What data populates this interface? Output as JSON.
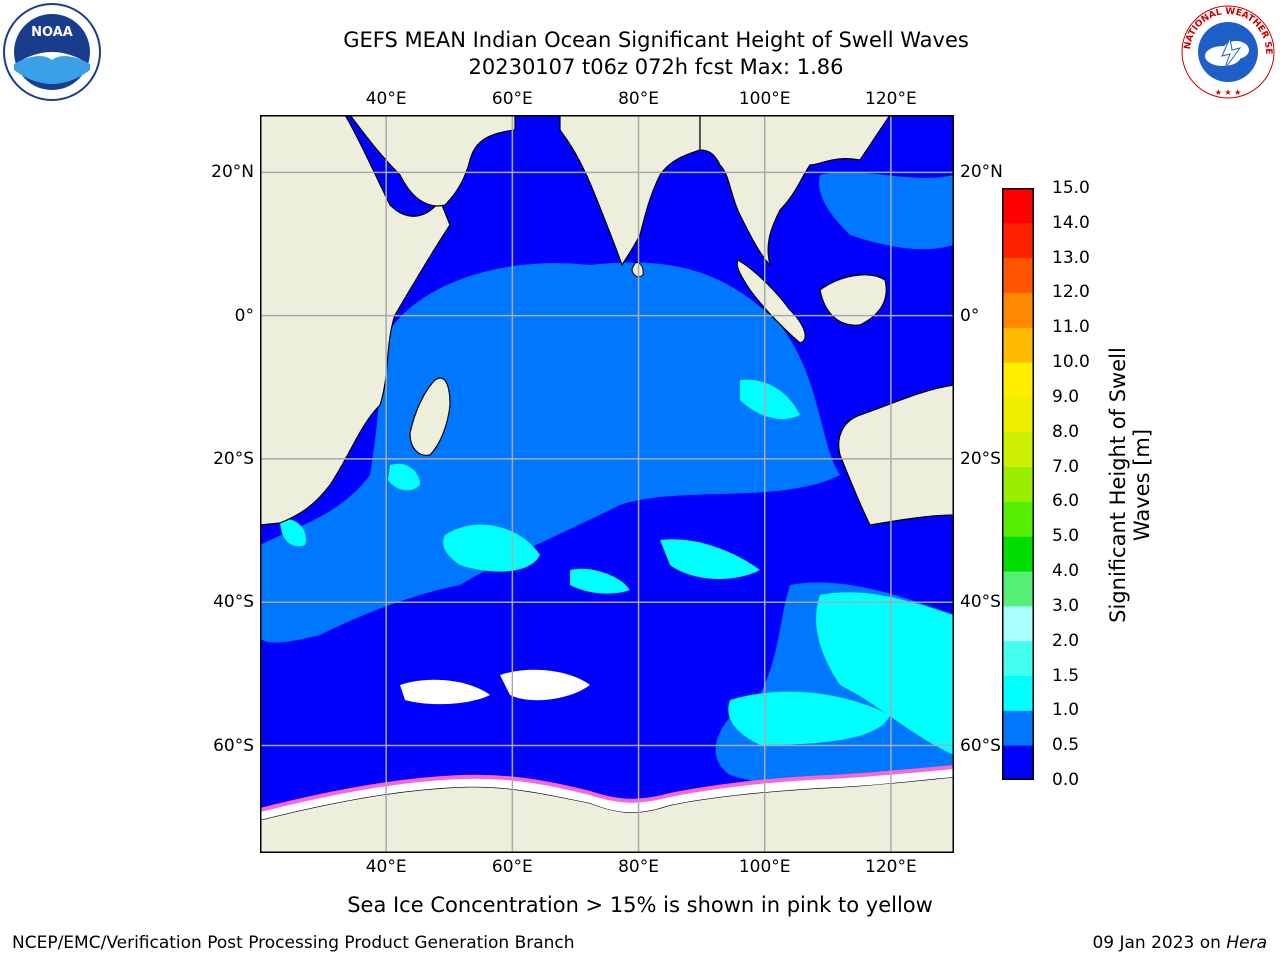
{
  "title_line1": "GEFS MEAN Indian Ocean Significant Height of Swell Waves",
  "title_line2": "20230107 t06z 072h fcst   Max: 1.86",
  "map": {
    "lon_labels": [
      "40°E",
      "60°E",
      "80°E",
      "100°E",
      "120°E"
    ],
    "lon_values": [
      40,
      60,
      80,
      100,
      120
    ],
    "lat_labels": [
      "20°N",
      "0°",
      "20°S",
      "40°S",
      "60°S"
    ],
    "lat_values": [
      20,
      0,
      -20,
      -40,
      -60
    ],
    "lon_range": [
      20,
      130
    ],
    "lat_range": [
      -75,
      28
    ],
    "colors": {
      "land": "#eeeedd",
      "ocean_deep": "#0000ff",
      "ocean_mid": "#0077ff",
      "ocean_light": "#00ffff",
      "ice_pink": "#ff66cc",
      "grid": "#aaaaaa"
    }
  },
  "colorbar": {
    "label": "Significant Height of Swell Waves [m]",
    "ticks": [
      "0.0",
      "0.5",
      "1.0",
      "1.5",
      "2.0",
      "3.0",
      "4.0",
      "5.0",
      "6.0",
      "7.0",
      "8.0",
      "9.0",
      "10.0",
      "11.0",
      "12.0",
      "13.0",
      "14.0",
      "15.0"
    ],
    "colors": [
      "#0000ff",
      "#0077ff",
      "#00ffff",
      "#44ffee",
      "#aaffff",
      "#55ee77",
      "#00dd00",
      "#55ee00",
      "#99ee00",
      "#ccee00",
      "#eeee00",
      "#ffee00",
      "#ffbb00",
      "#ff8800",
      "#ff5500",
      "#ff2200",
      "#ff0000"
    ]
  },
  "caption": "Sea Ice Concentration > 15% is shown in pink to yellow",
  "credit": "NCEP/EMC/Verification Post Processing Product Generation Branch",
  "stamp_date": "09 Jan 2023 on ",
  "stamp_host": "Hera",
  "logos": {
    "noaa_text": "NOAA",
    "nws_text": "NATIONAL WEATHER SERVICE"
  }
}
